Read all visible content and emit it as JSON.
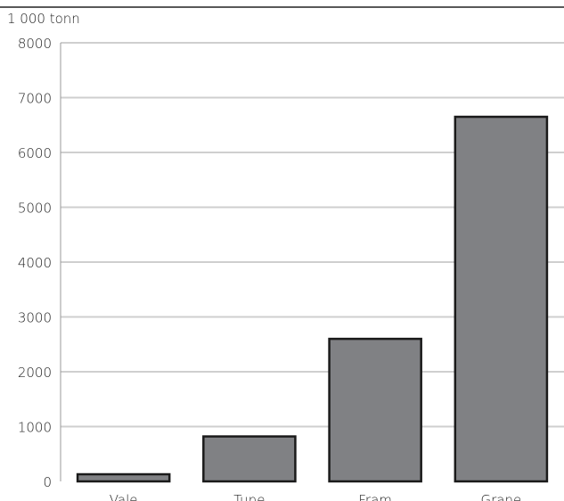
{
  "chart_data": {
    "type": "bar",
    "ylabel": "1 000 tonn",
    "categories": [
      "Vale",
      "Tune",
      "Fram",
      "Grane"
    ],
    "values": [
      130,
      820,
      2600,
      6650
    ],
    "ylim": [
      0,
      8000
    ],
    "yticks": [
      0,
      1000,
      2000,
      3000,
      4000,
      5000,
      6000,
      7000,
      8000
    ],
    "grid": true,
    "colors": {
      "bar": "#808184",
      "bar_stroke": "#1a1a1a",
      "grid": "#cfcfcf",
      "axis": "#9a9a9a"
    }
  }
}
